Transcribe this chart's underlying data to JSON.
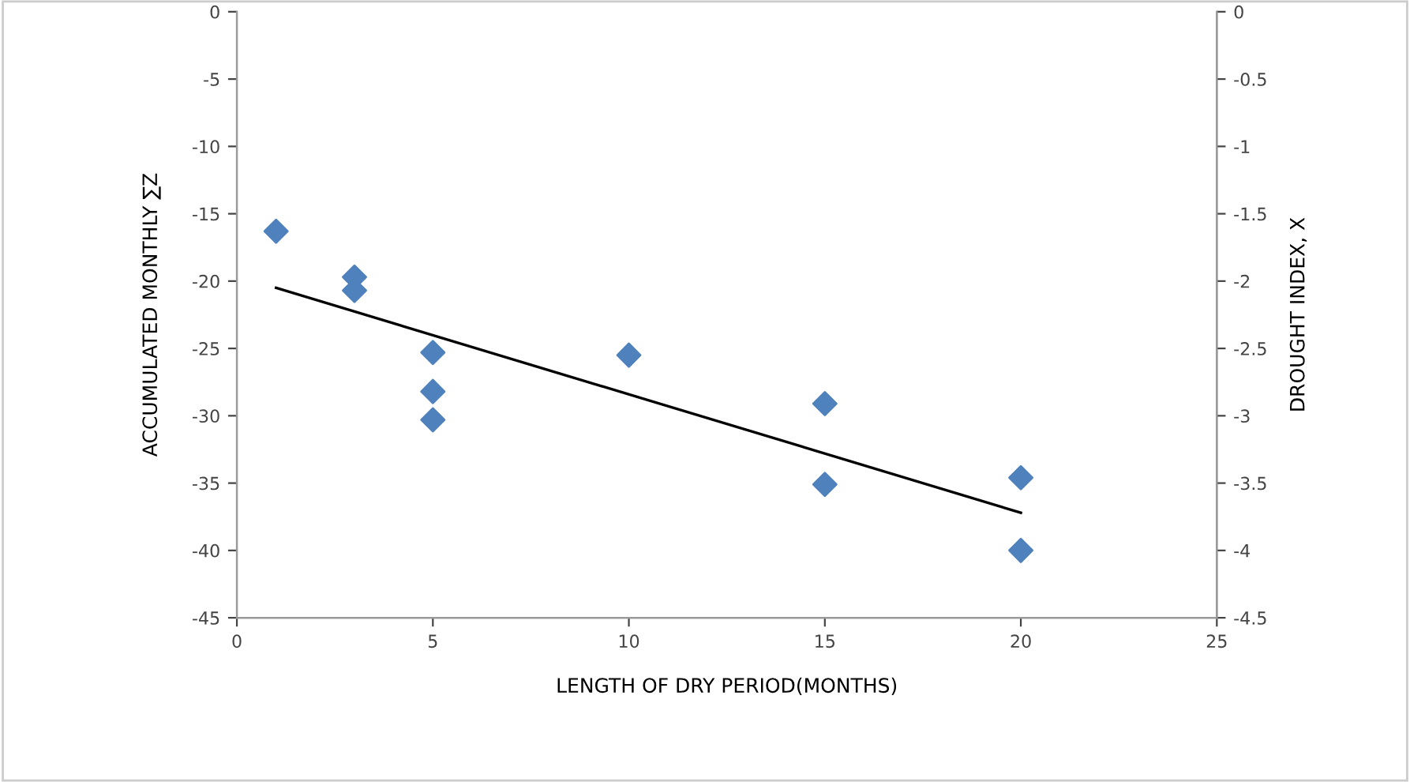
{
  "chart_data": {
    "type": "scatter",
    "xlabel": "LENGTH OF DRY PERIOD(MONTHS)",
    "ylabel": "ACCUMULATED MONTHLY ∑Z",
    "y2label": "DROUGHT INDEX, X",
    "series": [
      {
        "color": "#4f81bd",
        "marker": "diamond",
        "x": [
          1,
          3,
          3,
          5,
          5,
          5,
          10,
          15,
          15,
          20,
          20
        ],
        "values": [
          -16.3,
          -19.7,
          -20.7,
          -25.3,
          -28.2,
          -30.3,
          -25.5,
          -29.1,
          -35.1,
          -34.6,
          -40
        ]
      },
      {
        "type": "line",
        "color": "#000000",
        "marker": "none",
        "line_style": "solid",
        "x": [
          1,
          20
        ],
        "values": [
          -20.5,
          -37.2
        ]
      }
    ],
    "xlim": [
      0,
      25
    ],
    "xticks": [
      0,
      5,
      10,
      15,
      20,
      25
    ],
    "ylim": [
      -45,
      0
    ],
    "yticks": [
      0,
      -5,
      -10,
      -15,
      -20,
      -25,
      -30,
      -35,
      -40,
      -45
    ],
    "y2lim": [
      -4.5,
      0
    ],
    "y2ticks": [
      0,
      -0.5,
      -1,
      -1.5,
      -2,
      -2.5,
      -3,
      -3.5,
      -4,
      -4.5
    ],
    "grid": false,
    "legend": false
  }
}
